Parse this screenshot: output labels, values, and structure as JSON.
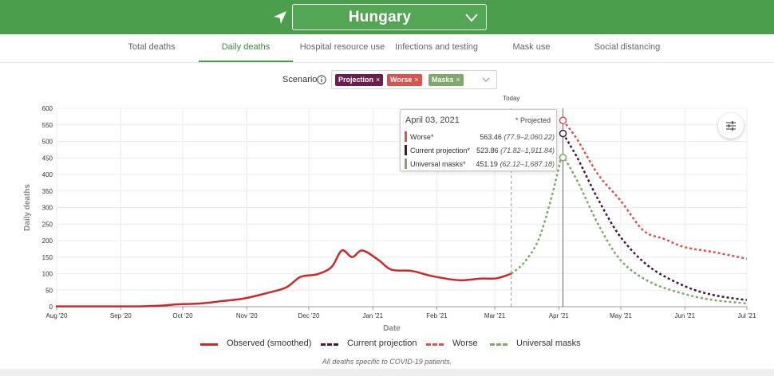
{
  "header": {
    "country": "Hungary",
    "nav_icon": "location-arrow-icon",
    "chevron_icon": "chevron-down-icon"
  },
  "tabs": [
    {
      "label": "Total deaths",
      "active": false
    },
    {
      "label": "Daily deaths",
      "active": true
    },
    {
      "label": "Hospital resource use",
      "active": false
    },
    {
      "label": "Infections and testing",
      "active": false
    },
    {
      "label": "Mask use",
      "active": false
    },
    {
      "label": "Social distancing",
      "active": false
    }
  ],
  "scenario": {
    "label": "Scenario",
    "chips": [
      {
        "label": "Projection",
        "color": "#6b1d4e"
      },
      {
        "label": "Worse",
        "color": "#d9534f"
      },
      {
        "label": "Masks",
        "color": "#7fa86a"
      }
    ],
    "remove_glyph": "×"
  },
  "tooltip": {
    "date": "April 03, 2021",
    "note": "* Projected",
    "rows": [
      {
        "name": "Worse*",
        "value": "563.46",
        "range": "(77.9–2,060.22)",
        "color": "#d9534f"
      },
      {
        "name": "Current projection*",
        "value": "523.86",
        "range": "(71.82–1,911.84)",
        "color": "#4a1538"
      },
      {
        "name": "Universal masks*",
        "value": "451.19",
        "range": "(62.12–1,687.18)",
        "color": "#7fa86a"
      }
    ]
  },
  "legend": [
    {
      "label": "Observed (smoothed)",
      "color": "#cc2a2a",
      "style": "solid"
    },
    {
      "label": "Current projection",
      "color": "#4a1538",
      "style": "dashed"
    },
    {
      "label": "Worse",
      "color": "#d9534f",
      "style": "dashed"
    },
    {
      "label": "Universal masks",
      "color": "#7fa86a",
      "style": "dashed"
    }
  ],
  "footnote": "All deaths specific to COVID-19 patients.",
  "chart_data": {
    "type": "line",
    "ylabel": "Daily deaths",
    "xlabel": "Date",
    "ylim": [
      0,
      600
    ],
    "yticks": [
      0,
      50,
      100,
      150,
      200,
      250,
      300,
      350,
      400,
      450,
      500,
      550,
      600
    ],
    "xlim": [
      "2020-08-01",
      "2021-07-01"
    ],
    "xticks": [
      {
        "date": "2020-08-01",
        "label": "Aug '20"
      },
      {
        "date": "2020-09-01",
        "label": "Sep '20"
      },
      {
        "date": "2020-10-01",
        "label": "Oct '20"
      },
      {
        "date": "2020-11-01",
        "label": "Nov '20"
      },
      {
        "date": "2020-12-01",
        "label": "Dec '20"
      },
      {
        "date": "2021-01-01",
        "label": "Jan '21"
      },
      {
        "date": "2021-02-01",
        "label": "Feb '21"
      },
      {
        "date": "2021-03-01",
        "label": "Mar '21"
      },
      {
        "date": "2021-04-01",
        "label": "Apr '21"
      },
      {
        "date": "2021-05-01",
        "label": "May '21"
      },
      {
        "date": "2021-06-01",
        "label": "Jun '21"
      },
      {
        "date": "2021-07-01",
        "label": "Jul '21"
      }
    ],
    "today": {
      "date": "2021-03-09",
      "label": "Today"
    },
    "hover_date": "2021-04-03",
    "grid": true,
    "series": [
      {
        "name": "Observed (smoothed)",
        "color": "#cc2a2a",
        "style": "solid",
        "points": [
          [
            "2020-08-01",
            1
          ],
          [
            "2020-08-20",
            1
          ],
          [
            "2020-09-10",
            1
          ],
          [
            "2020-09-20",
            3
          ],
          [
            "2020-09-28",
            7
          ],
          [
            "2020-10-10",
            10
          ],
          [
            "2020-10-20",
            17
          ],
          [
            "2020-10-30",
            24
          ],
          [
            "2020-11-10",
            40
          ],
          [
            "2020-11-20",
            58
          ],
          [
            "2020-11-27",
            90
          ],
          [
            "2020-12-05",
            98
          ],
          [
            "2020-12-12",
            120
          ],
          [
            "2020-12-17",
            170
          ],
          [
            "2020-12-22",
            150
          ],
          [
            "2020-12-27",
            170
          ],
          [
            "2021-01-04",
            140
          ],
          [
            "2021-01-10",
            112
          ],
          [
            "2021-01-20",
            108
          ],
          [
            "2021-01-30",
            92
          ],
          [
            "2021-02-12",
            80
          ],
          [
            "2021-02-22",
            85
          ],
          [
            "2021-03-02",
            86
          ],
          [
            "2021-03-09",
            100
          ]
        ]
      },
      {
        "name": "Universal masks",
        "color": "#7fa86a",
        "style": "dashed",
        "points": [
          [
            "2021-03-09",
            100
          ],
          [
            "2021-03-15",
            132
          ],
          [
            "2021-03-22",
            200
          ],
          [
            "2021-03-28",
            320
          ],
          [
            "2021-04-01",
            420
          ],
          [
            "2021-04-03",
            451.19
          ],
          [
            "2021-04-10",
            380
          ],
          [
            "2021-04-20",
            250
          ],
          [
            "2021-05-01",
            140
          ],
          [
            "2021-05-15",
            75
          ],
          [
            "2021-06-01",
            38
          ],
          [
            "2021-06-15",
            20
          ],
          [
            "2021-07-01",
            10
          ]
        ]
      },
      {
        "name": "Current projection",
        "color": "#4a1538",
        "style": "dashed",
        "points": [
          [
            "2021-04-03",
            523.86
          ],
          [
            "2021-04-10",
            450
          ],
          [
            "2021-04-20",
            325
          ],
          [
            "2021-05-01",
            210
          ],
          [
            "2021-05-15",
            120
          ],
          [
            "2021-06-01",
            62
          ],
          [
            "2021-06-15",
            35
          ],
          [
            "2021-07-01",
            20
          ]
        ]
      },
      {
        "name": "Worse",
        "color": "#d9534f",
        "style": "dashed",
        "points": [
          [
            "2021-04-03",
            563.46
          ],
          [
            "2021-04-10",
            505
          ],
          [
            "2021-04-20",
            400
          ],
          [
            "2021-05-01",
            320
          ],
          [
            "2021-05-12",
            230
          ],
          [
            "2021-05-22",
            205
          ],
          [
            "2021-06-01",
            180
          ],
          [
            "2021-06-15",
            165
          ],
          [
            "2021-07-01",
            145
          ]
        ]
      }
    ]
  }
}
